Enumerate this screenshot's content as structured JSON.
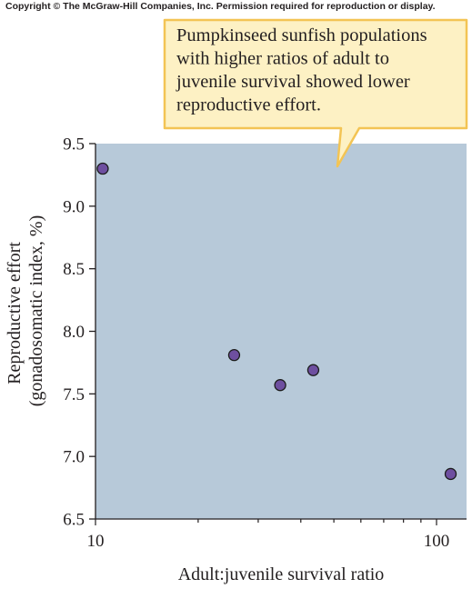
{
  "copyright": "Copyright © The McGraw-Hill Companies, Inc. Permission required for reproduction or display.",
  "colors": {
    "plot_background": "#b7c9d9",
    "point_fill": "#6e4fa0",
    "callout_fill": "#fdf1c4",
    "callout_border": "#f3c454",
    "text": "#231f20"
  },
  "callout": {
    "lines": [
      "Pumpkinseed sunfish populations",
      "with higher ratios of adult to",
      "juvenile survival showed lower",
      "reproductive effort."
    ]
  },
  "chart_data": {
    "type": "scatter",
    "x_scale": "log",
    "xlabel": "Adult:juvenile survival ratio",
    "ylabel_lines": [
      "Reproductive effort",
      "(gonadosomatic index, %)"
    ],
    "xlim": [
      10,
      112
    ],
    "ylim": [
      6.5,
      9.5
    ],
    "x_ticks": [
      10,
      100
    ],
    "x_tick_labels": [
      "10",
      "100"
    ],
    "y_ticks": [
      6.5,
      7.0,
      7.5,
      8.0,
      8.5,
      9.0,
      9.5
    ],
    "y_tick_labels": [
      "6.5",
      "7.0",
      "7.5",
      "8.0",
      "8.5",
      "9.0",
      "9.5"
    ],
    "grid": false,
    "points": [
      {
        "x": 10.5,
        "y": 9.3
      },
      {
        "x": 25.5,
        "y": 7.81
      },
      {
        "x": 34.8,
        "y": 7.57
      },
      {
        "x": 43.5,
        "y": 7.69
      },
      {
        "x": 110,
        "y": 6.86
      }
    ]
  }
}
